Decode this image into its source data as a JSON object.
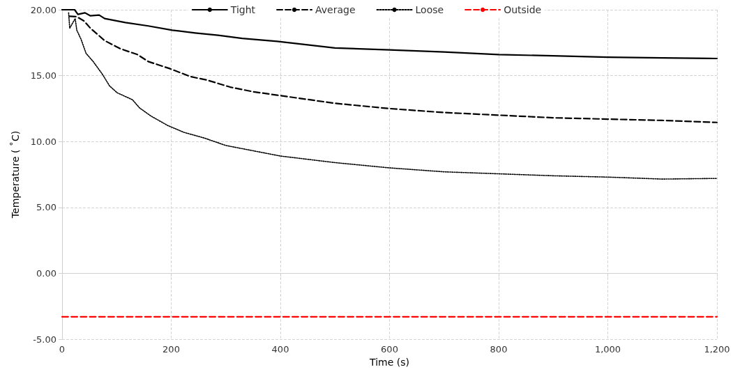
{
  "chart_data": {
    "type": "line",
    "xlabel": "Time (s)",
    "ylabel": "Temperature ( ˚C)",
    "xlim": [
      0,
      1200
    ],
    "xticks": [
      0,
      200,
      400,
      600,
      800,
      {
        "value": 1000,
        "label": "1,000"
      },
      {
        "value": 1200,
        "label": "1,200"
      }
    ],
    "ylim": [
      -5,
      20
    ],
    "yticks": [
      {
        "value": -5,
        "label": "-5.00"
      },
      {
        "value": 0,
        "label": "0.00"
      },
      {
        "value": 5,
        "label": "5.00"
      },
      {
        "value": 10,
        "label": "10.00"
      },
      {
        "value": 15,
        "label": "15.00"
      },
      {
        "value": 20,
        "label": "20.00"
      }
    ],
    "grid": true,
    "legend": "top",
    "marker": "none",
    "series": [
      {
        "name": "Tight",
        "color": "#000000",
        "line_style": "solid",
        "x": [
          0,
          23,
          29,
          42,
          52,
          68,
          78,
          116,
          158,
          202,
          244,
          286,
          330,
          394,
          500,
          600,
          700,
          800,
          900,
          1000,
          1100,
          1200
        ],
        "values": [
          20,
          20,
          19.65,
          19.77,
          19.54,
          19.6,
          19.33,
          19.03,
          18.77,
          18.45,
          18.24,
          18.06,
          17.83,
          17.6,
          17.1,
          16.95,
          16.8,
          16.6,
          16.5,
          16.4,
          16.35,
          16.3
        ]
      },
      {
        "name": "Average",
        "color": "#000000",
        "line_style": "dashed",
        "x": [
          14,
          27,
          40,
          52,
          78,
          107,
          138,
          158,
          197,
          235,
          266,
          308,
          350,
          394,
          500,
          600,
          700,
          800,
          900,
          1000,
          1100,
          1200
        ],
        "values": [
          19.5,
          19.47,
          19.15,
          18.6,
          17.66,
          17.04,
          16.6,
          16.07,
          15.54,
          14.93,
          14.66,
          14.13,
          13.78,
          13.52,
          12.9,
          12.5,
          12.2,
          12.0,
          11.8,
          11.7,
          11.6,
          11.45
        ]
      },
      {
        "name": "Loose",
        "color": "#000000",
        "line_style": "dotted",
        "x": [
          12,
          14,
          24,
          27,
          35,
          44,
          57,
          74,
          87,
          101,
          129,
          142,
          163,
          193,
          223,
          261,
          300,
          400,
          500,
          600,
          700,
          800,
          900,
          1000,
          1100,
          1200
        ],
        "values": [
          19.77,
          18.6,
          19.33,
          18.45,
          17.74,
          16.69,
          16.07,
          15.1,
          14.22,
          13.7,
          13.17,
          12.55,
          11.93,
          11.23,
          10.7,
          10.26,
          9.7,
          8.9,
          8.4,
          8.0,
          7.7,
          7.55,
          7.4,
          7.3,
          7.15,
          7.2
        ]
      },
      {
        "name": "Outside",
        "color": "#ff0000",
        "line_style": "dashed",
        "x": [
          0,
          1200
        ],
        "values": [
          -3.3,
          -3.3
        ]
      }
    ]
  }
}
